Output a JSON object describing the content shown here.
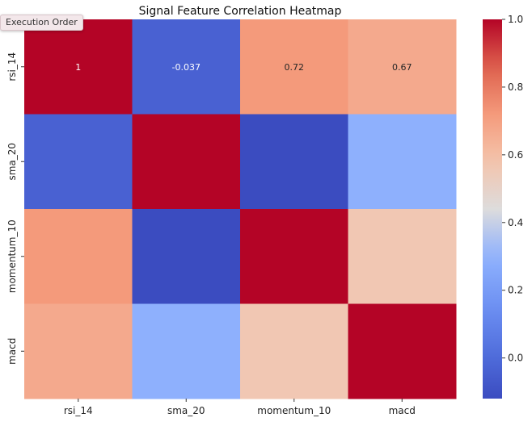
{
  "ui": {
    "execution_order_label": "Execution Order"
  },
  "chart_data": {
    "type": "heatmap",
    "title": "Signal Feature Correlation Heatmap",
    "xlabel": "",
    "ylabel": "",
    "x_categories": [
      "rsi_14",
      "sma_20",
      "momentum_10",
      "macd"
    ],
    "y_categories": [
      "rsi_14",
      "sma_20",
      "momentum_10",
      "macd"
    ],
    "values": [
      [
        1.0,
        -0.037,
        0.72,
        0.67
      ],
      [
        -0.037,
        1.0,
        -0.12,
        0.29
      ],
      [
        0.72,
        -0.12,
        1.0,
        0.56
      ],
      [
        0.67,
        0.29,
        0.56,
        1.0
      ]
    ],
    "annotations": [
      [
        "1",
        "-0.037",
        "0.72",
        "0.67"
      ],
      [
        "",
        "",
        "",
        ""
      ],
      [
        "",
        "",
        "",
        ""
      ],
      [
        "",
        "",
        "",
        ""
      ]
    ],
    "colormap": "coolwarm",
    "vmin": -0.12,
    "vmax": 1.0,
    "colorbar_ticks": [
      0.0,
      0.2,
      0.4,
      0.6,
      0.8,
      1.0
    ],
    "colorbar_tick_labels": [
      "0.0",
      "0.2",
      "0.4",
      "0.6",
      "0.8",
      "1.0"
    ]
  }
}
